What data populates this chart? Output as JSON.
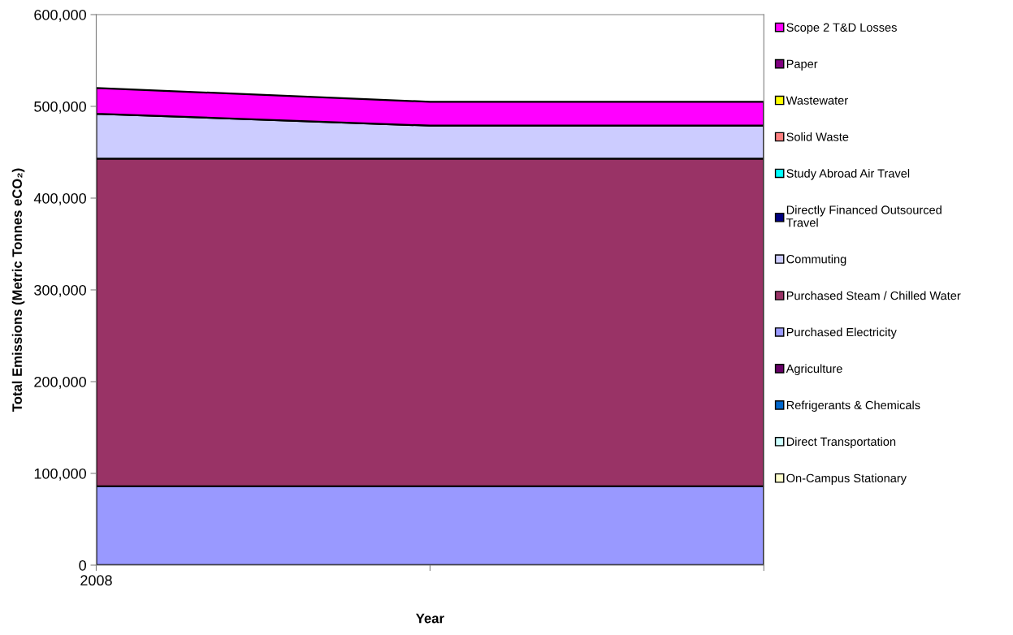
{
  "chart_data": {
    "type": "area",
    "stacked": true,
    "xlabel": "Year",
    "ylabel": "Total Emissions (Metric Tonnes eCO₂)",
    "categories": [
      "2008",
      null,
      null
    ],
    "ylim": [
      0,
      600000
    ],
    "yticks": [
      {
        "value": 0,
        "label": "0"
      },
      {
        "value": 100000,
        "label": "100,000"
      },
      {
        "value": 200000,
        "label": "200,000"
      },
      {
        "value": 300000,
        "label": "300,000"
      },
      {
        "value": 400000,
        "label": "400,000"
      },
      {
        "value": 500000,
        "label": "500,000"
      },
      {
        "value": 600000,
        "label": "600,000"
      }
    ],
    "grid": false,
    "legend": "right",
    "series": [
      {
        "name": "On-Campus Stationary",
        "color": "#ffffcc",
        "values": [
          null,
          null,
          null
        ]
      },
      {
        "name": "Direct Transportation",
        "color": "#ccffff",
        "values": [
          null,
          null,
          null
        ]
      },
      {
        "name": "Refrigerants & Chemicals",
        "color": "#0066cc",
        "values": [
          null,
          null,
          null
        ]
      },
      {
        "name": "Agriculture",
        "color": "#660066",
        "values": [
          null,
          null,
          null
        ]
      },
      {
        "name": "Purchased Electricity",
        "color": "#9999ff",
        "values": [
          86000,
          86000,
          86000
        ]
      },
      {
        "name": "Purchased Steam / Chilled Water",
        "color": "#993366",
        "values": [
          357000,
          357000,
          357000
        ]
      },
      {
        "name": "Commuting",
        "color": "#ccccff",
        "values": [
          49000,
          36000,
          36000
        ]
      },
      {
        "name": "Directly Financed Outsourced\nTravel",
        "color": "#000080",
        "values": [
          null,
          null,
          null
        ]
      },
      {
        "name": "Study Abroad Air Travel",
        "color": "#00ffff",
        "values": [
          null,
          null,
          null
        ]
      },
      {
        "name": "Solid Waste",
        "color": "#ff8080",
        "values": [
          null,
          null,
          null
        ]
      },
      {
        "name": "Wastewater",
        "color": "#ffff00",
        "values": [
          null,
          null,
          null
        ]
      },
      {
        "name": "Paper",
        "color": "#800080",
        "values": [
          null,
          null,
          null
        ]
      },
      {
        "name": "Scope 2 T&D Losses",
        "color": "#ff00ff",
        "values": [
          28000,
          26000,
          26000
        ]
      }
    ]
  }
}
